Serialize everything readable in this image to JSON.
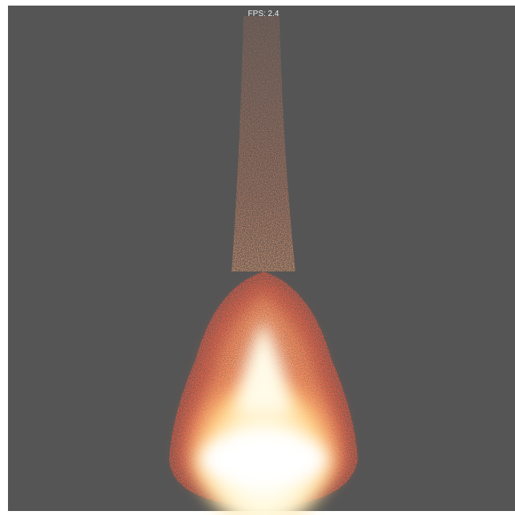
{
  "fps_label": "FPS: 2.4"
}
